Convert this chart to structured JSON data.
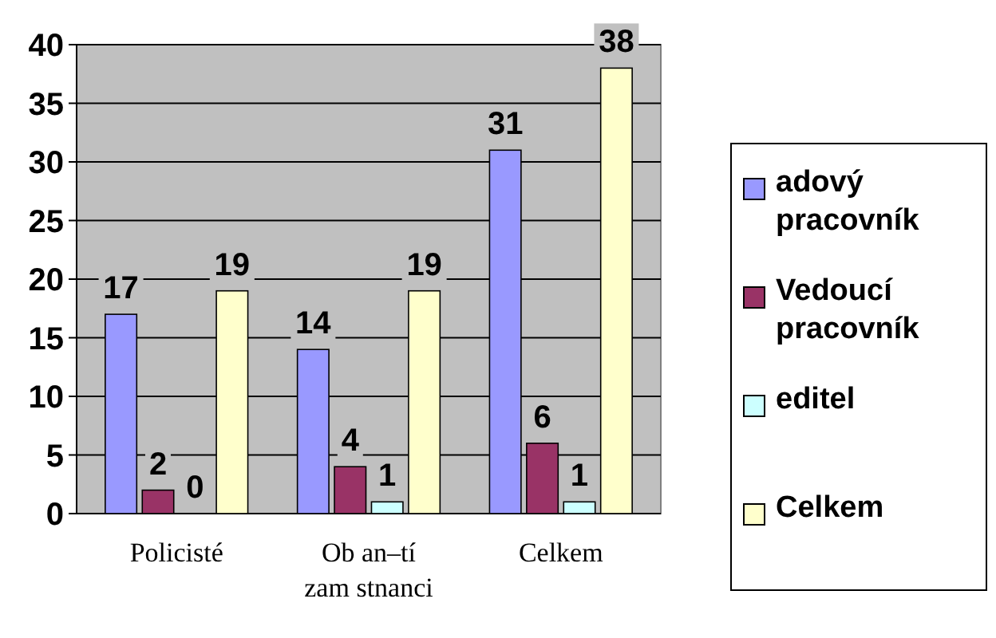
{
  "chart_data": {
    "type": "bar",
    "categories": [
      "Policisté",
      "Ob an–tí zam stnanci",
      "Celkem"
    ],
    "series": [
      {
        "name": "adový pracovník",
        "color": "#9999ff",
        "values": [
          17,
          14,
          31
        ]
      },
      {
        "name": "Vedoucí pracovník",
        "color": "#993366",
        "values": [
          2,
          4,
          6
        ]
      },
      {
        "name": "editel",
        "color": "#ccffff",
        "values": [
          0,
          1,
          1
        ]
      },
      {
        "name": "Celkem",
        "color": "#ffffcc",
        "values": [
          19,
          19,
          38
        ]
      }
    ],
    "ylim": [
      0,
      40
    ],
    "yticks": [
      0,
      5,
      10,
      15,
      20,
      25,
      30,
      35,
      40
    ],
    "grid": "y",
    "legend": "right",
    "data_labels": true
  }
}
